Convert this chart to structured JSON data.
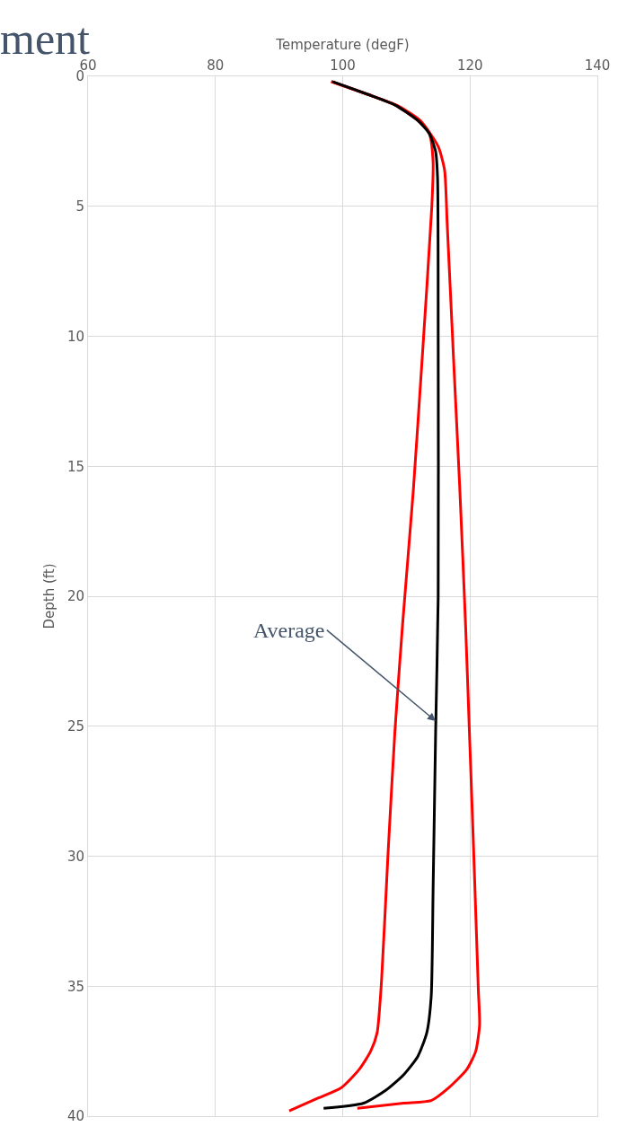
{
  "chart_data": {
    "type": "line",
    "xlabel": "Temperature (degF)",
    "ylabel": "Depth (ft)",
    "xlim": [
      60,
      140
    ],
    "xticks": [
      60,
      80,
      100,
      120,
      140
    ],
    "ylim": [
      40,
      0
    ],
    "yticks": [
      0,
      5,
      10,
      15,
      20,
      25,
      30,
      35,
      40
    ],
    "grid": true,
    "annotations": [
      "ment",
      {
        "text": "Average",
        "x": 114.6,
        "y": 24.8
      }
    ],
    "series": [
      {
        "color": "#ff0000",
        "x": [
          98.2,
          104,
          108.2,
          111.8,
          113.6,
          114.2,
          114,
          112.5,
          111.1,
          109.4,
          108.2,
          107.1,
          106.1,
          105.4,
          104.4,
          102.6,
          99.8,
          96.2,
          91.6
        ],
        "values": [
          0.2,
          0.7,
          1.1,
          1.7,
          2.2,
          3.3,
          5,
          10.8,
          15.9,
          21.1,
          25.2,
          30,
          34.8,
          36.8,
          37.5,
          38.2,
          38.9,
          39.3,
          39.8
        ]
      },
      {
        "color": "#ff0000",
        "x": [
          98.2,
          104,
          108.4,
          112.2,
          115,
          116,
          116.4,
          117.4,
          118.4,
          119.3,
          119.9,
          120.6,
          121.3,
          121.5,
          120.9,
          119.5,
          116.7,
          113.9,
          109.6,
          102.3
        ],
        "values": [
          0.2,
          0.7,
          1.1,
          1.7,
          2.7,
          3.6,
          5.6,
          10.8,
          15.9,
          21.1,
          25.2,
          30,
          35.1,
          36.5,
          37.5,
          38.2,
          38.9,
          39.4,
          39.5,
          39.7
        ]
      },
      {
        "color": "#000000",
        "x": [
          98.4,
          104,
          108.2,
          111.8,
          113.6,
          114.6,
          114.9,
          115,
          115,
          114.6,
          114.2,
          113.9,
          113.2,
          111.8,
          109.6,
          106.8,
          103.3,
          97
        ],
        "values": [
          0.2,
          0.7,
          1.1,
          1.7,
          2.2,
          2.9,
          3.9,
          10,
          20,
          25.2,
          31.3,
          35.4,
          36.8,
          37.7,
          38.4,
          39,
          39.5,
          39.7
        ]
      }
    ]
  }
}
